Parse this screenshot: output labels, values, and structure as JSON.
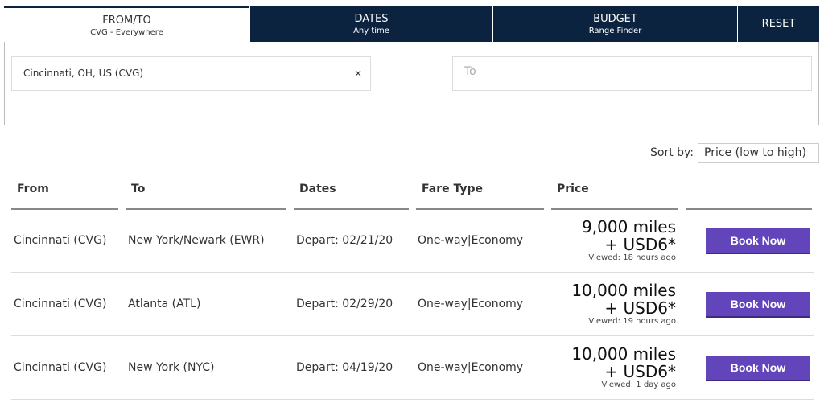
{
  "tabs": [
    {
      "title": "FROM/TO",
      "subtitle": "CVG - Everywhere"
    },
    {
      "title": "DATES",
      "subtitle": "Any time"
    },
    {
      "title": "BUDGET",
      "subtitle": "Range Finder"
    },
    {
      "title": "RESET"
    }
  ],
  "search": {
    "from_value": "Cincinnati, OH, US (CVG)",
    "clear_icon": "×",
    "to_placeholder": "To"
  },
  "sort": {
    "label": "Sort by:",
    "selected": "Price (low to high)"
  },
  "table": {
    "headers": [
      "From",
      "To",
      "Dates",
      "Fare Type",
      "Price"
    ],
    "rows": [
      {
        "from": "Cincinnati (CVG)",
        "to": "New York/Newark (EWR)",
        "dates": "Depart: 02/21/20",
        "fare": "One-way|Economy",
        "miles": "9,000 miles",
        "usd": "+ USD6*",
        "viewed": "Viewed: 18 hours ago",
        "button": "Book Now"
      },
      {
        "from": "Cincinnati (CVG)",
        "to": "Atlanta (ATL)",
        "dates": "Depart: 02/29/20",
        "fare": "One-way|Economy",
        "miles": "10,000 miles",
        "usd": "+ USD6*",
        "viewed": "Viewed: 19 hours ago",
        "button": "Book Now"
      },
      {
        "from": "Cincinnati (CVG)",
        "to": "New York (NYC)",
        "dates": "Depart: 04/19/20",
        "fare": "One-way|Economy",
        "miles": "10,000 miles",
        "usd": "+ USD6*",
        "viewed": "Viewed: 1 day ago",
        "button": "Book Now"
      }
    ]
  },
  "colors": {
    "nav": "#0c2340",
    "book_button": "#6244bb"
  }
}
